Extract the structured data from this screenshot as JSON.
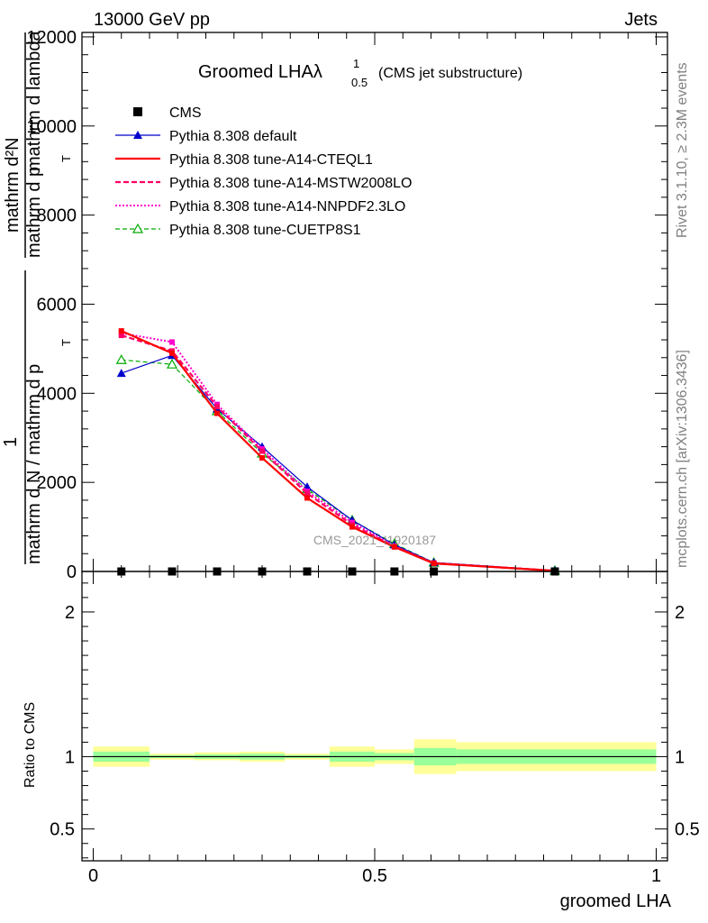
{
  "header": {
    "energy": "13000 GeV pp",
    "category": "Jets",
    "rivet": "Rivet 3.1.10, ≥ 2.3M events",
    "site": "mcplots.cern.ch [arXiv:1306.3436]",
    "watermark": "CMS_2021_I1920187"
  },
  "title": {
    "main": "Groomed LHAλ",
    "sup": "1",
    "sub": "0.5",
    "tail": "(CMS jet substructure)"
  },
  "ylabel_top": {
    "numer": "mathrm d²N",
    "denom": "mathrm d p",
    "denom_sub": "T",
    "denom_tail": " mathrm d lambda",
    "prefix": "1",
    "prefix_denom": "mathrm d N / mathrm d p",
    "prefix_sub": "T"
  },
  "xlabel": "groomed LHA",
  "ratio_ylabel": "Ratio to CMS",
  "legend": {
    "cms": "CMS",
    "s1": "Pythia 8.308 default",
    "s2": "Pythia 8.308 tune-A14-CTEQL1",
    "s3": "Pythia 8.308 tune-A14-MSTW2008LO",
    "s4": "Pythia 8.308 tune-A14-NNPDF2.3LO",
    "s5": "Pythia 8.308 tune-CUETP8S1"
  },
  "chart_data": [
    {
      "type": "line",
      "x": [
        0.05,
        0.14,
        0.22,
        0.3,
        0.38,
        0.46,
        0.535,
        0.605,
        0.82
      ],
      "xlim": [
        -0.02,
        1.02
      ],
      "ylim": [
        0,
        12100
      ],
      "yticks": [
        0,
        2000,
        4000,
        6000,
        8000,
        10000,
        12000
      ],
      "yticklabels": [
        "0",
        "2000",
        "4000",
        "6000",
        "8000",
        "10000",
        "12000"
      ],
      "xticks": [
        0,
        0.5,
        1
      ],
      "xticklabels": [
        "0",
        "0.5",
        "1"
      ],
      "series": [
        {
          "name": "CMS",
          "color": "#000000",
          "values": [
            0,
            0,
            0,
            0,
            0,
            0,
            0,
            0,
            0
          ]
        },
        {
          "name": "Pythia 8.308 default",
          "color": "#0000cc",
          "values": [
            4450,
            4850,
            3650,
            2800,
            1900,
            1150,
            600,
            200,
            20
          ]
        },
        {
          "name": "Pythia 8.308 tune-A14-CTEQL1",
          "color": "#ff0000",
          "values": [
            5400,
            4900,
            3550,
            2550,
            1650,
            1000,
            550,
            180,
            15
          ]
        },
        {
          "name": "Pythia 8.308 tune-A14-MSTW2008LO",
          "color": "#ff0066",
          "values": [
            5300,
            4950,
            3700,
            2700,
            1750,
            1050,
            560,
            185,
            15
          ]
        },
        {
          "name": "Pythia 8.308 tune-A14-NNPDF2.3LO",
          "color": "#ff00cc",
          "values": [
            5350,
            5150,
            3750,
            2750,
            1800,
            1100,
            570,
            190,
            15
          ]
        },
        {
          "name": "Pythia 8.308 tune-CUETP8S1",
          "color": "#00aa00",
          "values": [
            4750,
            4650,
            3600,
            2650,
            1850,
            1150,
            620,
            200,
            20
          ]
        }
      ]
    },
    {
      "type": "area",
      "ylabel": "Ratio to CMS",
      "ylim": [
        0.28,
        2.28
      ],
      "yticks": [
        0.5,
        1,
        2
      ],
      "yticklabels": [
        "0.5",
        "1",
        "2"
      ],
      "bin_edges": [
        0,
        0.1,
        0.18,
        0.26,
        0.34,
        0.42,
        0.5,
        0.57,
        0.645,
        1.0
      ],
      "band_yellow": [
        [
          0.93,
          1.07
        ],
        [
          0.98,
          1.02
        ],
        [
          0.975,
          1.03
        ],
        [
          0.965,
          1.035
        ],
        [
          0.98,
          1.02
        ],
        [
          0.93,
          1.07
        ],
        [
          0.95,
          1.05
        ],
        [
          0.88,
          1.12
        ],
        [
          0.9,
          1.1
        ]
      ],
      "band_green": [
        [
          0.965,
          1.035
        ],
        [
          0.99,
          1.01
        ],
        [
          0.985,
          1.015
        ],
        [
          0.98,
          1.02
        ],
        [
          0.99,
          1.01
        ],
        [
          0.965,
          1.035
        ],
        [
          0.975,
          1.025
        ],
        [
          0.94,
          1.06
        ],
        [
          0.95,
          1.05
        ]
      ]
    }
  ]
}
